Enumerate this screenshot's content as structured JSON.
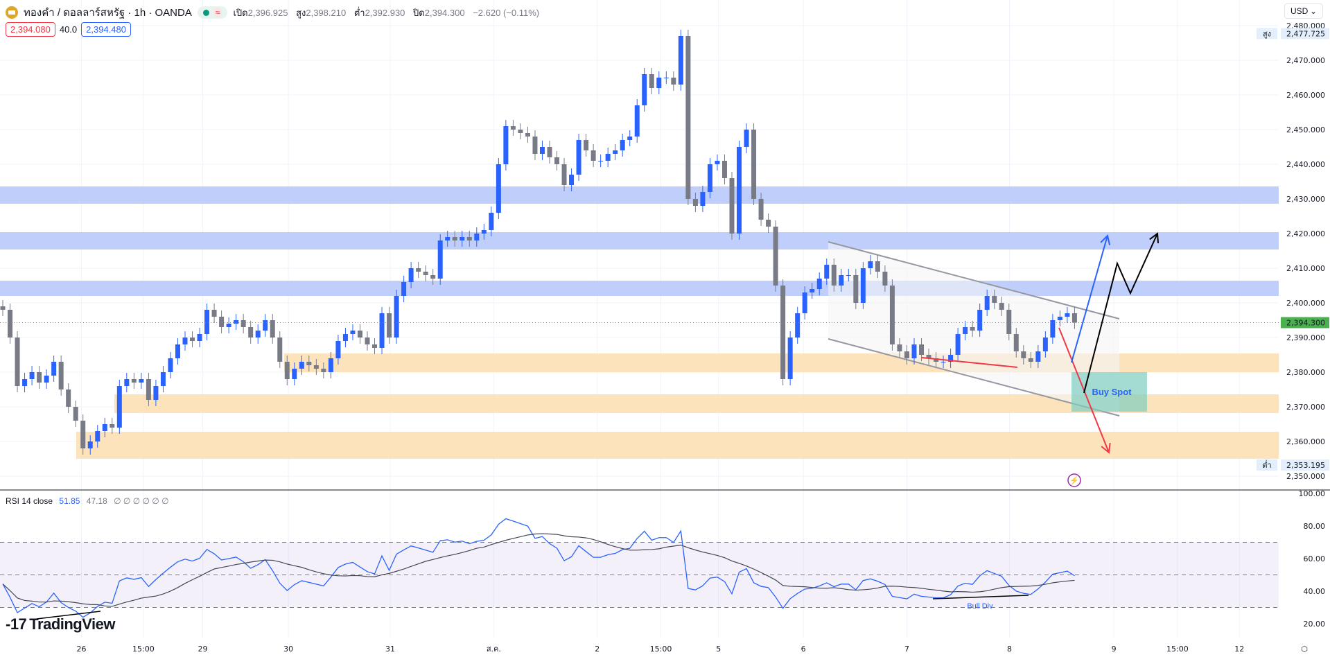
{
  "header": {
    "symbol": "ทองคำ / ดอลลาร์สหรัฐ · 1h · OANDA",
    "open_label": "เปิด",
    "open": "2,396.925",
    "high_label": "สูง",
    "high": "2,398.210",
    "low_label": "ต่ำ",
    "low": "2,392.930",
    "close_label": "ปิด",
    "close": "2,394.300",
    "change": "−2.620 (−0.11%)",
    "sell_price": "2,394.080",
    "spread": "40.0",
    "buy_price": "2,394.480",
    "currency": "USD"
  },
  "rsi_legend": {
    "label": "RSI 14 close",
    "rsi": "51.85",
    "ma": "47.18",
    "extra": "∅ ∅ ∅ ∅ ∅ ∅"
  },
  "branding": "TradingView",
  "colors": {
    "up": "#2962ff",
    "down": "#787b86",
    "resistance_zone": "#b8c9fb",
    "support_zone": "#fde0b4",
    "last_price": "#4caf50",
    "rsi": "#2962ff",
    "rsi_ma": "#434651"
  },
  "chart_data": [
    {
      "type": "candlestick",
      "title": "ทองคำ / ดอลลาร์สหรัฐ · 1h · OANDA",
      "ylim": [
        2345,
        2482
      ],
      "y_ticks": [
        "2,480.000",
        "2,470.000",
        "2,460.000",
        "2,450.000",
        "2,440.000",
        "2,430.000",
        "2,420.000",
        "2,410.000",
        "2,400.000",
        "2,390.000",
        "2,380.000",
        "2,370.000",
        "2,360.000",
        "2,350.000"
      ],
      "x_ticks": [
        "26",
        "15:00",
        "29",
        "30",
        "31",
        "ส.ค.",
        "2",
        "15:00",
        "5",
        "6",
        "7",
        "8",
        "9",
        "15:00",
        "12"
      ],
      "high_marker": {
        "label": "สูง",
        "value": "2,477.725"
      },
      "low_marker": {
        "label": "ต่ำ",
        "value": "2,353.195"
      },
      "last_price": "2,394.300",
      "closes": [
        2398,
        2390,
        2376,
        2378,
        2380,
        2377,
        2379,
        2383,
        2375,
        2370,
        2366,
        2358,
        2360,
        2363,
        2365,
        2364,
        2376,
        2378,
        2377,
        2378,
        2372,
        2376,
        2380,
        2384,
        2388,
        2390,
        2389,
        2391,
        2398,
        2396,
        2393,
        2394,
        2395,
        2393,
        2390,
        2392,
        2395,
        2390,
        2383,
        2378,
        2381,
        2383,
        2382,
        2381,
        2380,
        2384,
        2389,
        2391,
        2392,
        2390,
        2388,
        2387,
        2397,
        2390,
        2402,
        2406,
        2410,
        2409,
        2408,
        2407,
        2418,
        2419,
        2418,
        2419,
        2418,
        2420,
        2421,
        2426,
        2440,
        2451,
        2450,
        2449,
        2448,
        2443,
        2445,
        2442,
        2440,
        2434,
        2437,
        2447,
        2444,
        2441,
        2441,
        2443,
        2444,
        2447,
        2448,
        2457,
        2466,
        2462,
        2465,
        2465,
        2463,
        2477,
        2430,
        2428,
        2432,
        2440,
        2441,
        2436,
        2420,
        2445,
        2450,
        2430,
        2424,
        2422,
        2405,
        2378,
        2390,
        2397,
        2403,
        2404,
        2407,
        2411,
        2405,
        2408,
        2408,
        2400,
        2410,
        2412,
        2409,
        2405,
        2388,
        2386,
        2384,
        2388,
        2385,
        2384,
        2383,
        2383,
        2385,
        2391,
        2393,
        2392,
        2398,
        2402,
        2400,
        2398,
        2391,
        2386,
        2384,
        2383,
        2386,
        2390,
        2395,
        2396,
        2397,
        2394.3
      ],
      "zones": [
        {
          "kind": "resistance",
          "from": 2428.6,
          "to": 2433.6
        },
        {
          "kind": "resistance",
          "from": 2415.4,
          "to": 2420.4
        },
        {
          "kind": "resistance",
          "from": 2402.0,
          "to": 2406.4
        },
        {
          "kind": "support",
          "from": 2380.0,
          "to": 2385.4
        },
        {
          "kind": "support",
          "from": 2368.2,
          "to": 2373.6
        },
        {
          "kind": "support",
          "from": 2355.0,
          "to": 2362.8
        }
      ],
      "annotations": {
        "buy_zone_label": "Buy Spot"
      }
    },
    {
      "type": "line",
      "title": "RSI 14 close",
      "ylim": [
        15,
        103
      ],
      "y_ticks": [
        "100.00",
        "80.00",
        "60.00",
        "40.00",
        "20.00"
      ],
      "bands": [
        30,
        50,
        70
      ],
      "annotations": {
        "divergence_label": "Bull Div"
      }
    }
  ]
}
